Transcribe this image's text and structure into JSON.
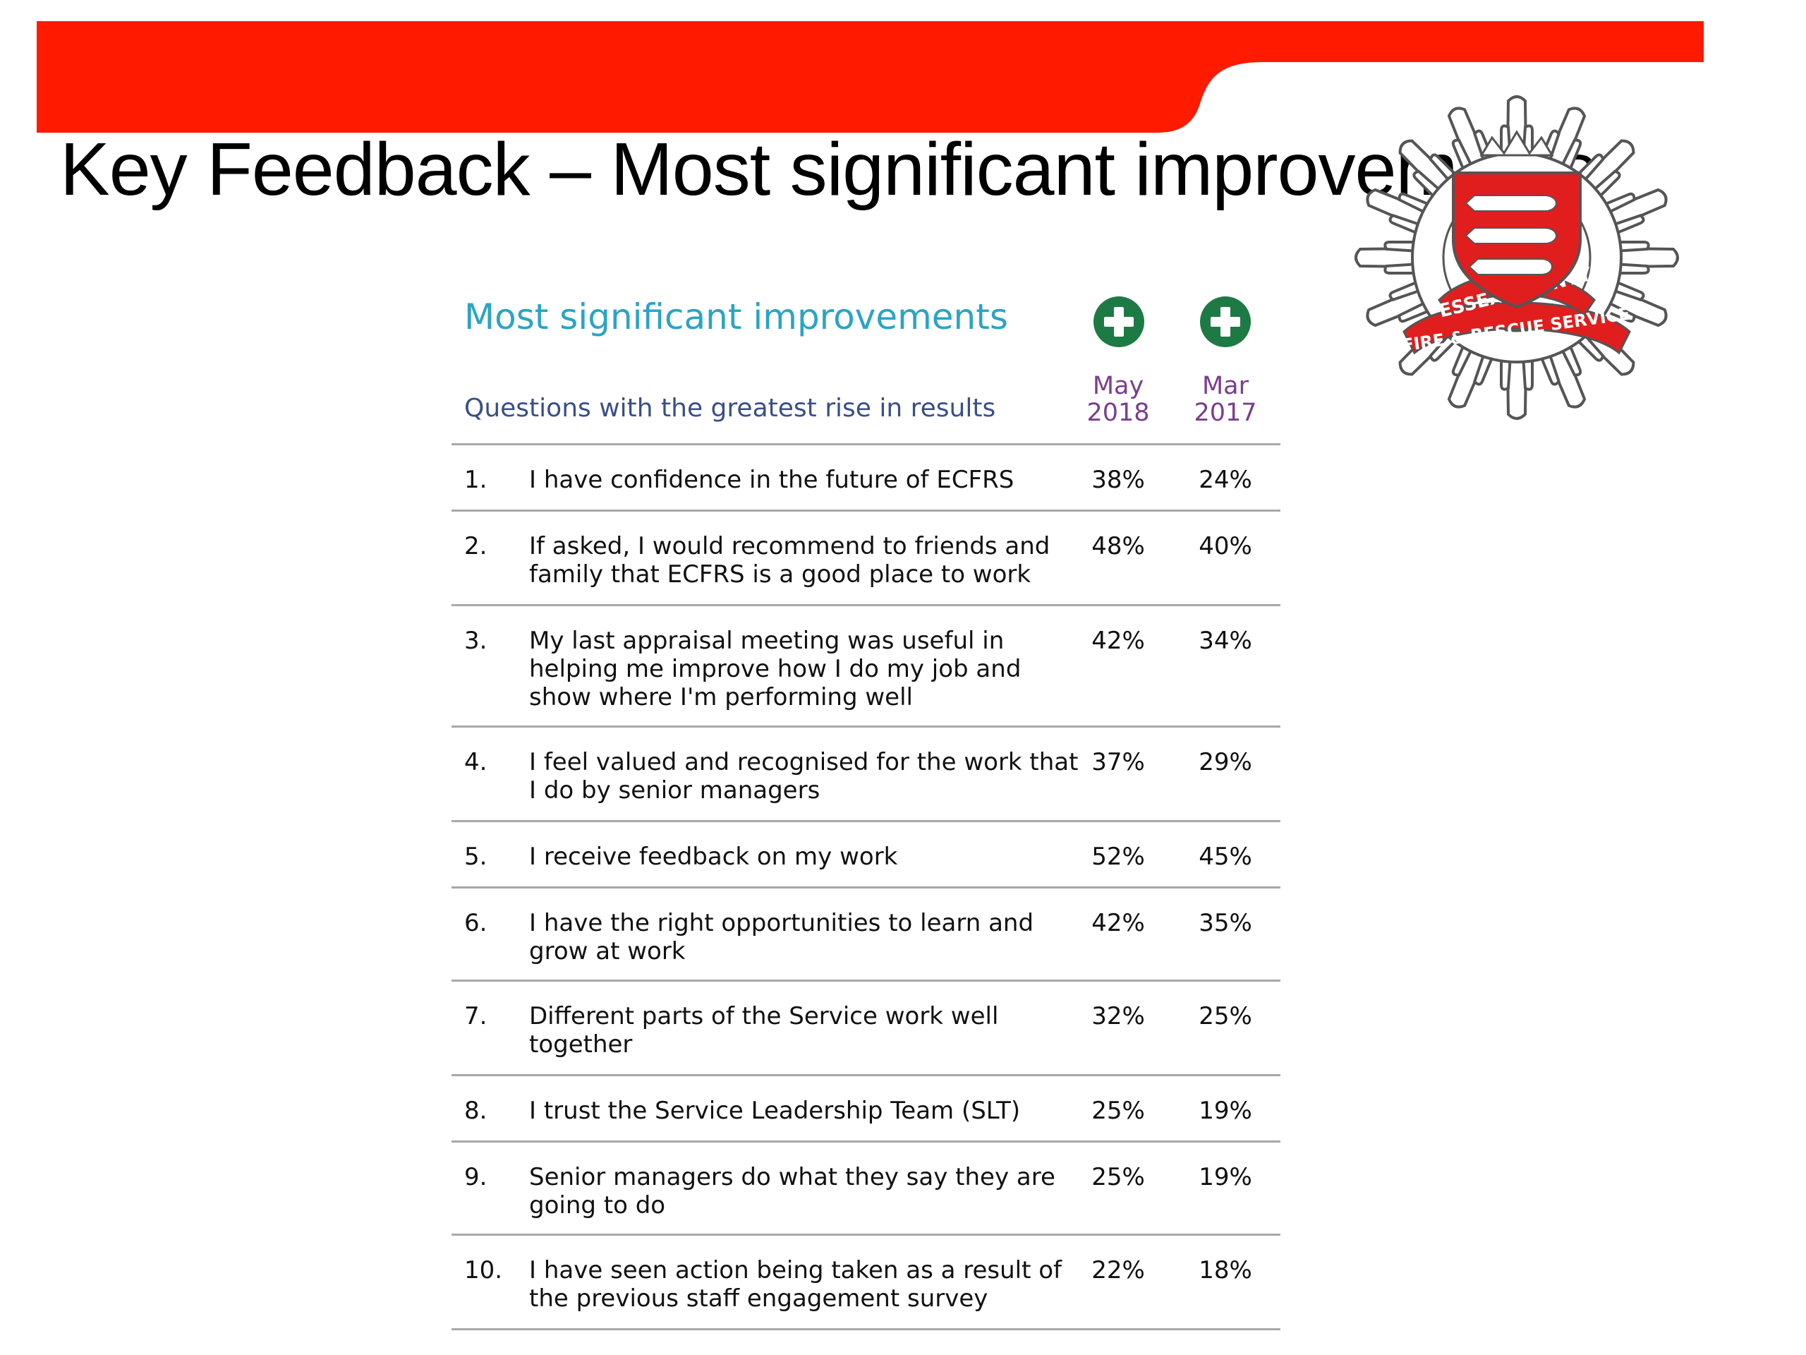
{
  "slide": {
    "title": "Key Feedback – Most significant improvements"
  },
  "colors": {
    "banner_red": "#ff1a00",
    "heading_blue": "#2aa4c6",
    "subheading_navy": "#3a4f88",
    "column_purple": "#7b3d8f",
    "badge_green": "#1e7a45"
  },
  "logo": {
    "icon": "fire-service-crest-icon",
    "ring_top": "ESSEX COUNTY",
    "ring_bottom": "FIRE & RESCUE SERVICE"
  },
  "table": {
    "heading": "Most significant improvements",
    "subheading": "Questions with the greatest rise in results",
    "column_icon": "plus-circle-icon",
    "columns": [
      {
        "line1": "May",
        "line2": "2018"
      },
      {
        "line1": "Mar",
        "line2": "2017"
      }
    ],
    "rows": [
      {
        "num": "1.",
        "question": "I have confidence in the future of ECFRS",
        "may_2018": "38%",
        "mar_2017": "24%"
      },
      {
        "num": "2.",
        "question": "If asked, I would recommend to friends and family that ECFRS is a good place to work",
        "may_2018": "48%",
        "mar_2017": "40%"
      },
      {
        "num": "3.",
        "question": "My last appraisal meeting was useful in helping me improve how I do my job and show where I'm performing well",
        "may_2018": "42%",
        "mar_2017": "34%"
      },
      {
        "num": "4.",
        "question": "I feel valued and recognised for the work that I do by senior managers",
        "may_2018": "37%",
        "mar_2017": "29%"
      },
      {
        "num": "5.",
        "question": "I receive feedback on my work",
        "may_2018": "52%",
        "mar_2017": "45%"
      },
      {
        "num": "6.",
        "question": "I have the right opportunities to learn and grow at work",
        "may_2018": "42%",
        "mar_2017": "35%"
      },
      {
        "num": "7.",
        "question": "Different parts of the Service work well together",
        "may_2018": "32%",
        "mar_2017": "25%"
      },
      {
        "num": "8.",
        "question": "I trust the Service Leadership Team (SLT)",
        "may_2018": "25%",
        "mar_2017": "19%"
      },
      {
        "num": "9.",
        "question": "Senior managers do what they say they are going to do",
        "may_2018": "25%",
        "mar_2017": "19%"
      },
      {
        "num": "10.",
        "question": "I have seen action being taken as a result of the previous staff engagement survey",
        "may_2018": "22%",
        "mar_2017": "18%"
      }
    ]
  }
}
